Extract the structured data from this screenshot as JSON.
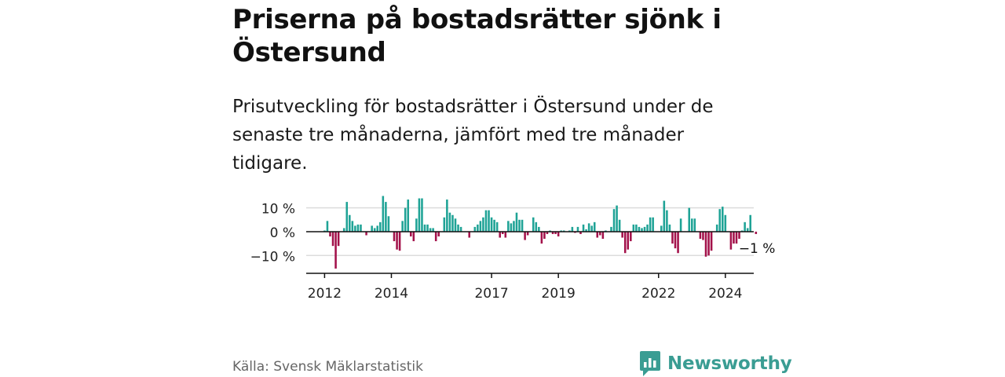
{
  "title": "Priserna på bostadsrätter sjönk i Östersund",
  "subtitle": "Prisutveckling för bostadsrätter i Östersund under de senaste tre månaderna, jämfört med tre månader tidigare.",
  "source": "Källa: Svensk Mäklarstatistik",
  "brand": "Newsworthy",
  "colors": {
    "positive": "#1fa396",
    "negative": "#a3114a",
    "brand": "#3a9d93",
    "grid": "#dcdcdc"
  },
  "chart_data": {
    "type": "bar",
    "ylabel": "",
    "xlabel": "",
    "ylim": [
      -17.5,
      15.5
    ],
    "yticks": [
      10,
      0,
      -10
    ],
    "ytick_labels": [
      "10 %",
      "0 %",
      "−10 %"
    ],
    "xticks": [
      2012,
      2014,
      2017,
      2019,
      2022,
      2024
    ],
    "x_start": 2011.75,
    "x_step": 0.08333,
    "annotation": "−1 %",
    "values": [
      0,
      0,
      0,
      0.5,
      4.5,
      -2,
      -6,
      -15.5,
      -6,
      0,
      1.5,
      12.5,
      7,
      4.5,
      2.5,
      3,
      3,
      0,
      -1.5,
      0,
      2.5,
      1.5,
      2.5,
      4,
      15,
      12.5,
      6.5,
      0,
      -4,
      -7.5,
      -8,
      4.5,
      10,
      13.5,
      -2,
      -4,
      5.5,
      14,
      14,
      3,
      3,
      1.5,
      1.5,
      -4,
      -2,
      0,
      6,
      13.5,
      8,
      7,
      5.5,
      3,
      2,
      0,
      0,
      -2.5,
      0,
      2,
      3,
      4.5,
      6,
      9,
      9,
      6,
      5,
      4,
      -2.5,
      -1,
      -2.5,
      4.5,
      3.5,
      4.5,
      8,
      5,
      5,
      -3.5,
      -1.5,
      0,
      6,
      4,
      2,
      -5,
      -3,
      -1,
      0.5,
      -1,
      -1,
      -2,
      0.5,
      0.5,
      0,
      0.5,
      2,
      -0.5,
      2,
      -1,
      3,
      1,
      3.5,
      2.5,
      4,
      -2.5,
      -1.5,
      -3,
      0.5,
      0,
      2,
      9.5,
      11,
      5,
      -2.5,
      -9,
      -7.5,
      -4,
      3,
      3,
      2,
      1.5,
      2,
      3,
      6,
      6,
      0,
      0,
      2.5,
      13,
      9,
      3,
      -5,
      -7,
      -9,
      5.5,
      0,
      0,
      10,
      5.5,
      5.5,
      0,
      -3,
      -3.5,
      -10.5,
      -10,
      -8,
      0,
      3,
      9.5,
      10.5,
      7,
      0,
      -7.5,
      -5,
      -5,
      -3,
      0.5,
      4,
      1.5,
      7,
      0,
      -1
    ]
  }
}
